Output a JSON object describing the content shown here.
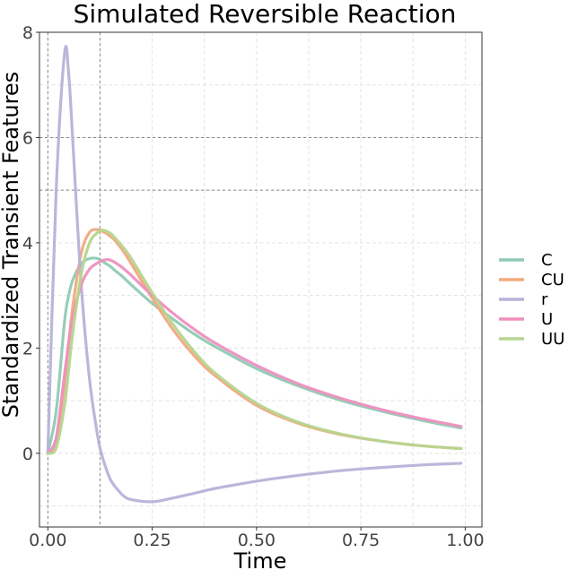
{
  "chart_data": {
    "type": "line",
    "title": "Simulated Reversible Reaction",
    "xlabel": "Time",
    "ylabel": "Standardized Transient Features",
    "xlim": [
      -0.02,
      1.04
    ],
    "ylim": [
      -1.4,
      8.0
    ],
    "x_ticks": [
      "0.00",
      "0.25",
      "0.50",
      "0.75",
      "1.00"
    ],
    "x_tick_values": [
      0,
      0.25,
      0.5,
      0.75,
      1.0
    ],
    "y_ticks": [
      "0",
      "2",
      "4",
      "6",
      "8"
    ],
    "y_tick_values": [
      0,
      2,
      4,
      6,
      8
    ],
    "grid": true,
    "legend_position": "right",
    "x": [
      0,
      0.02,
      0.04,
      0.05,
      0.06,
      0.08,
      0.1,
      0.12,
      0.13,
      0.14,
      0.15,
      0.16,
      0.18,
      0.2,
      0.25,
      0.3,
      0.35,
      0.4,
      0.5,
      0.6,
      0.7,
      0.8,
      0.9,
      0.99
    ],
    "series": [
      {
        "name": "C",
        "color": "#8fcbb3",
        "values": [
          0,
          0.8,
          2.5,
          3.0,
          3.3,
          3.6,
          3.7,
          3.7,
          3.65,
          3.6,
          3.55,
          3.48,
          3.35,
          3.2,
          2.85,
          2.55,
          2.27,
          2.03,
          1.61,
          1.28,
          1.01,
          0.8,
          0.62,
          0.48
        ]
      },
      {
        "name": "CU",
        "color": "#f2a97f",
        "values": [
          0,
          0.2,
          1.3,
          2.1,
          2.8,
          3.8,
          4.2,
          4.25,
          4.22,
          4.18,
          4.12,
          4.05,
          3.85,
          3.6,
          2.95,
          2.35,
          1.86,
          1.48,
          0.91,
          0.57,
          0.36,
          0.23,
          0.14,
          0.09
        ]
      },
      {
        "name": "r",
        "color": "#b7b2d8",
        "values": [
          0,
          5.0,
          7.6,
          7.2,
          5.9,
          3.2,
          1.4,
          0.3,
          -0.05,
          -0.3,
          -0.5,
          -0.62,
          -0.8,
          -0.88,
          -0.92,
          -0.85,
          -0.76,
          -0.67,
          -0.53,
          -0.42,
          -0.33,
          -0.27,
          -0.22,
          -0.19
        ]
      },
      {
        "name": "U",
        "color": "#ee8fbf",
        "values": [
          0,
          0.3,
          1.5,
          2.1,
          2.6,
          3.2,
          3.5,
          3.62,
          3.66,
          3.68,
          3.67,
          3.63,
          3.52,
          3.38,
          3.0,
          2.66,
          2.36,
          2.1,
          1.67,
          1.32,
          1.05,
          0.83,
          0.65,
          0.51
        ]
      },
      {
        "name": "UU",
        "color": "#b5d58f",
        "values": [
          0,
          0.1,
          0.9,
          1.6,
          2.3,
          3.4,
          4.0,
          4.2,
          4.24,
          4.22,
          4.18,
          4.1,
          3.92,
          3.7,
          3.05,
          2.45,
          1.94,
          1.53,
          0.95,
          0.59,
          0.37,
          0.23,
          0.14,
          0.09
        ]
      }
    ],
    "reference_lines": {
      "vertical": [
        0,
        0.125
      ],
      "horizontal": [
        5,
        6
      ]
    }
  }
}
